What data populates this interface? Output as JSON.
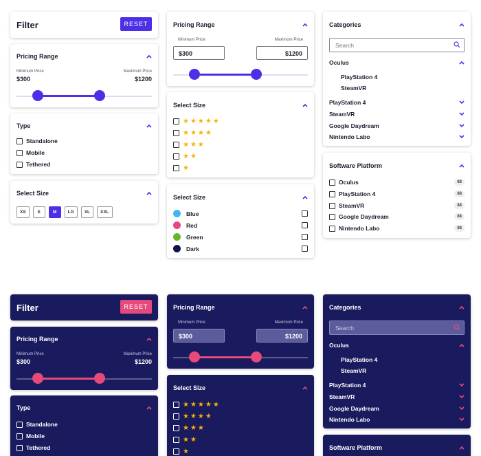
{
  "filter": {
    "title": "Filter",
    "reset_label": "RESET"
  },
  "pricing_left": {
    "title": "Pricing Range",
    "min_label": "Minimum Price",
    "max_label": "Maximum Price",
    "min_value": "$300",
    "max_value": "$1200"
  },
  "type": {
    "title": "Type",
    "items": [
      "Standalone",
      "Mobile",
      "Tethered"
    ]
  },
  "select_size_buttons": {
    "title": "Select Size",
    "sizes": [
      "XS",
      "S",
      "M",
      "LG",
      "XL",
      "XXL"
    ],
    "selected": "M"
  },
  "pricing_mid": {
    "title": "Pricing Range",
    "min_label": "Minimum Price",
    "max_label": "Maximum Price",
    "min_value": "$300",
    "max_value": "$1200"
  },
  "select_size_stars": {
    "title": "Select Size",
    "ratings": [
      "★★★★★",
      "★★★★",
      "★★★",
      "★★",
      "★"
    ]
  },
  "select_size_colors": {
    "title": "Select Size",
    "items": [
      {
        "label": "Blue",
        "color": "#3fb8f0"
      },
      {
        "label": "Red",
        "color": "#e8467d"
      },
      {
        "label": "Green",
        "color": "#6ab42d"
      },
      {
        "label": "Dark",
        "color": "#121250"
      }
    ]
  },
  "categories": {
    "title": "Categories",
    "search_placeholder": "Search",
    "groups": [
      {
        "label": "Oculus",
        "expanded": true,
        "children": [
          "PlayStation 4",
          "SteamVR"
        ]
      },
      {
        "label": "PlayStation 4",
        "expanded": false
      },
      {
        "label": "SteamVR",
        "expanded": false
      },
      {
        "label": "Google Daydream",
        "expanded": false
      },
      {
        "label": "Nintendo Labo",
        "expanded": false
      }
    ]
  },
  "software_platform": {
    "title": "Software Platform",
    "items": [
      {
        "label": "Oculus",
        "count": "88"
      },
      {
        "label": "PlayStation 4",
        "count": "88"
      },
      {
        "label": "SteamVR",
        "count": "88"
      },
      {
        "label": "Google Daydream",
        "count": "88"
      },
      {
        "label": "Nintendo Labo",
        "count": "88"
      }
    ]
  },
  "slider": {
    "low_fraction": 0.2,
    "high_fraction": 0.6
  },
  "colors": {
    "light_accent": "#4b30e8",
    "dark_accent": "#e64a7d",
    "dark_bg": "#1a1a5e",
    "star": "#f4b400"
  }
}
